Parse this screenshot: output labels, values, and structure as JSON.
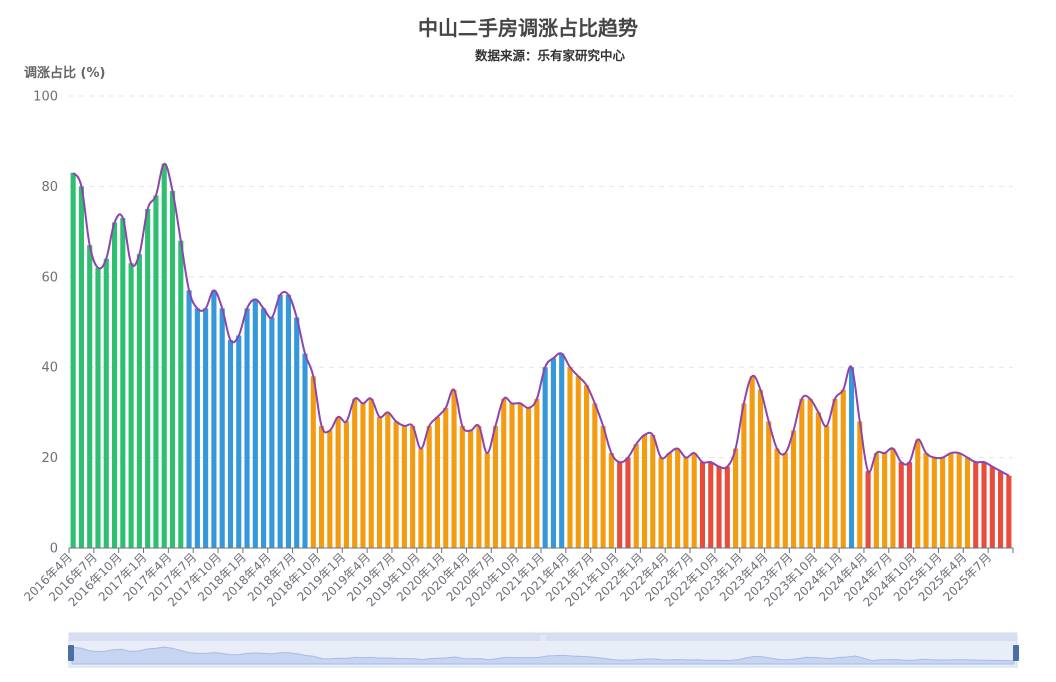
{
  "chart_data": {
    "type": "bar",
    "title": "中山二手房调涨占比趋势",
    "subtitle": "数据来源：乐有家研究中心",
    "ylabel": "调涨占比 (%)",
    "ylim": [
      0,
      100
    ],
    "yticks": [
      0,
      20,
      40,
      60,
      80,
      100
    ],
    "grid": true,
    "overlay_line": "smooth",
    "colors": {
      "green": "#2fbf71",
      "blue": "#3498db",
      "orange": "#f39c12",
      "red": "#e74c3c",
      "line": "#8e44ad",
      "grid": "#e0e6f1",
      "axis": "#6e7079"
    },
    "x_tick_labels": [
      "2016年4月",
      "2016年7月",
      "2016年10月",
      "2017年1月",
      "2017年4月",
      "2017年7月",
      "2017年10月",
      "2018年1月",
      "2018年4月",
      "2018年7月",
      "2018年10月",
      "2019年1月",
      "2019年4月",
      "2019年7月",
      "2019年10月",
      "2020年1月",
      "2020年4月",
      "2020年7月",
      "2020年10月",
      "2021年1月",
      "2021年4月",
      "2021年7月",
      "2021年10月",
      "2022年1月",
      "2022年4月",
      "2022年7月",
      "2022年10月",
      "2023年1月",
      "2023年4月",
      "2023年7月",
      "2023年10月",
      "2024年1月",
      "2024年4月",
      "2024年7月",
      "2024年10月",
      "2025年1月",
      "2025年4月",
      "2025年7月"
    ],
    "start_month": "2016年4月",
    "values": [
      83,
      80,
      67,
      62,
      64,
      72,
      73,
      63,
      65,
      75,
      78,
      85,
      79,
      68,
      57,
      53,
      53,
      57,
      53,
      46,
      47,
      53,
      55,
      53,
      51,
      56,
      56,
      51,
      43,
      38,
      27,
      26,
      29,
      28,
      33,
      32,
      33,
      29,
      30,
      28,
      27,
      27,
      22,
      27,
      29,
      31,
      35,
      27,
      26,
      27,
      21,
      27,
      33,
      32,
      32,
      31,
      33,
      40,
      42,
      43,
      40,
      38,
      36,
      32,
      27,
      21,
      19,
      20,
      23,
      25,
      25,
      20,
      21,
      22,
      20,
      21,
      19,
      19,
      18,
      18,
      22,
      32,
      38,
      35,
      28,
      22,
      21,
      26,
      33,
      33,
      30,
      27,
      33,
      35,
      40,
      28,
      17,
      21,
      21,
      22,
      19,
      19,
      24,
      21,
      20,
      20,
      21,
      21,
      20,
      19,
      19,
      18,
      17,
      16
    ],
    "colors_by_index": [
      "green",
      "green",
      "green",
      "green",
      "green",
      "green",
      "green",
      "green",
      "green",
      "green",
      "green",
      "green",
      "green",
      "green",
      "blue",
      "blue",
      "blue",
      "blue",
      "blue",
      "blue",
      "blue",
      "blue",
      "blue",
      "blue",
      "blue",
      "blue",
      "blue",
      "blue",
      "blue",
      "orange",
      "orange",
      "orange",
      "orange",
      "orange",
      "orange",
      "orange",
      "orange",
      "orange",
      "orange",
      "orange",
      "orange",
      "orange",
      "orange",
      "orange",
      "orange",
      "orange",
      "orange",
      "orange",
      "orange",
      "orange",
      "orange",
      "orange",
      "orange",
      "orange",
      "orange",
      "orange",
      "orange",
      "blue",
      "blue",
      "blue",
      "orange",
      "orange",
      "orange",
      "orange",
      "orange",
      "orange",
      "red",
      "red",
      "orange",
      "orange",
      "orange",
      "orange",
      "orange",
      "orange",
      "orange",
      "orange",
      "red",
      "red",
      "red",
      "red",
      "orange",
      "orange",
      "orange",
      "orange",
      "orange",
      "orange",
      "orange",
      "orange",
      "orange",
      "orange",
      "orange",
      "orange",
      "orange",
      "orange",
      "blue",
      "orange",
      "red",
      "orange",
      "orange",
      "orange",
      "red",
      "red",
      "orange",
      "orange",
      "orange",
      "orange",
      "orange",
      "orange",
      "orange",
      "red",
      "red",
      "red",
      "red",
      "red"
    ]
  },
  "datazoom": {
    "handle_label": "|||"
  }
}
